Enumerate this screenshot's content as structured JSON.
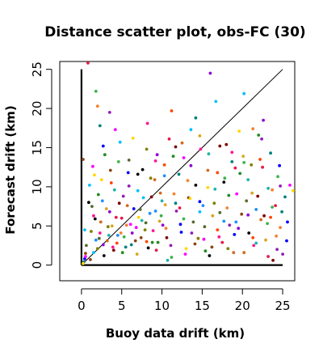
{
  "chart_data": {
    "type": "scatter",
    "title": "Distance scatter plot, obs-FC (30)",
    "xlabel": "Buoy data drift (km)",
    "ylabel": "Forecast drift (km)",
    "xlim": [
      -2.7,
      26.5
    ],
    "ylim": [
      -2,
      26
    ],
    "x_ticks": [
      0,
      5,
      10,
      15,
      20,
      25
    ],
    "y_ticks": [
      0,
      5,
      10,
      15,
      20,
      25
    ],
    "grid": false,
    "legend": "none",
    "reference_lines": [
      {
        "kind": "diagonal",
        "from": [
          0,
          0
        ],
        "to": [
          25,
          25
        ]
      },
      {
        "kind": "vertical",
        "from": [
          0,
          0
        ],
        "to": [
          0,
          25
        ]
      },
      {
        "kind": "horizontal",
        "from": [
          0,
          0
        ],
        "to": [
          25,
          0
        ]
      }
    ],
    "colors": [
      "#e6194b",
      "#3cb44b",
      "#f58231",
      "#911eb4",
      "#008080",
      "#0000ff",
      "#ff00ff",
      "#ffd700",
      "#8b4513",
      "#00bfff",
      "#556b2f",
      "#000000",
      "#808000",
      "#ff1493",
      "#1e90ff",
      "#228b22",
      "#d2691e",
      "#9400d3",
      "#daa520",
      "#20b2aa",
      "#ff4500",
      "#800000"
    ],
    "points": [
      [
        0.8,
        25.8
      ],
      [
        1.8,
        22.2
      ],
      [
        2,
        20.3
      ],
      [
        3.5,
        19.5
      ],
      [
        2.3,
        17.8
      ],
      [
        2.7,
        15.2
      ],
      [
        4.2,
        17.3
      ],
      [
        1.6,
        11.5
      ],
      [
        0.2,
        13.5
      ],
      [
        0.4,
        4.5
      ],
      [
        0.6,
        2.5
      ],
      [
        0.9,
        8
      ],
      [
        1.2,
        4.3
      ],
      [
        1.5,
        6.3
      ],
      [
        1.8,
        3.2
      ],
      [
        2.1,
        9
      ],
      [
        2.4,
        5.5
      ],
      [
        2.7,
        2.6
      ],
      [
        3.1,
        7.2
      ],
      [
        3.4,
        3.8
      ],
      [
        3.7,
        10.5
      ],
      [
        4,
        1.9
      ],
      [
        4.3,
        6.1
      ],
      [
        4.6,
        13.2
      ],
      [
        4.9,
        4.1
      ],
      [
        5.2,
        8.8
      ],
      [
        5.5,
        2.3
      ],
      [
        5.8,
        11.8
      ],
      [
        6.1,
        5.2
      ],
      [
        6.4,
        16.2
      ],
      [
        6.7,
        3.1
      ],
      [
        7,
        9.5
      ],
      [
        7.3,
        7.1
      ],
      [
        7.6,
        12.2
      ],
      [
        7.9,
        4.5
      ],
      [
        8.2,
        18.1
      ],
      [
        8.5,
        6.6
      ],
      [
        8.8,
        2.9
      ],
      [
        9.1,
        10.9
      ],
      [
        9.4,
        14.1
      ],
      [
        9.7,
        5.6
      ],
      [
        10,
        8.2
      ],
      [
        10.3,
        12.8
      ],
      [
        10.6,
        3.5
      ],
      [
        10.9,
        16.1
      ],
      [
        11.2,
        1
      ],
      [
        11.5,
        9.1
      ],
      [
        11.8,
        6.9
      ],
      [
        12.1,
        11.6
      ],
      [
        12.4,
        4.2
      ],
      [
        12.7,
        13.7
      ],
      [
        13,
        2.1
      ],
      [
        13.3,
        8.6
      ],
      [
        13.6,
        17.3
      ],
      [
        13.9,
        5.5
      ],
      [
        14.2,
        10.2
      ],
      [
        14.5,
        3.4
      ],
      [
        14.8,
        14.8
      ],
      [
        15.1,
        7.6
      ],
      [
        15.4,
        1.8
      ],
      [
        15.7,
        12.1
      ],
      [
        16,
        24.5
      ],
      [
        16.3,
        6.3
      ],
      [
        16.6,
        9.7
      ],
      [
        16.9,
        4.5
      ],
      [
        17.2,
        15.2
      ],
      [
        17.5,
        2.9
      ],
      [
        17.8,
        11.1
      ],
      [
        18.1,
        7.3
      ],
      [
        18.4,
        5.1
      ],
      [
        18.7,
        13.2
      ],
      [
        19,
        3.9
      ],
      [
        19.3,
        9.1
      ],
      [
        19.6,
        17.1
      ],
      [
        19.9,
        6.5
      ],
      [
        20.2,
        21.9
      ],
      [
        20.5,
        8.2
      ],
      [
        20.8,
        4.1
      ],
      [
        21.1,
        12.8
      ],
      [
        21.4,
        2.5
      ],
      [
        21.7,
        7.1
      ],
      [
        22,
        16.6
      ],
      [
        22.3,
        5.8
      ],
      [
        22.6,
        18.5
      ],
      [
        22.9,
        3.2
      ],
      [
        23.2,
        9.8
      ],
      [
        23.5,
        6.1
      ],
      [
        23.8,
        0.6
      ],
      [
        24.1,
        7.6
      ],
      [
        24.4,
        11.3
      ],
      [
        24.7,
        4.8
      ],
      [
        25,
        1.4
      ],
      [
        25.3,
        8.7
      ],
      [
        25.6,
        5.5
      ],
      [
        25.9,
        10.2
      ],
      [
        26.3,
        9.5
      ],
      [
        0.5,
        1.5
      ],
      [
        1,
        10.2
      ],
      [
        1.3,
        7.5
      ],
      [
        1.7,
        5.9
      ],
      [
        2,
        2.1
      ],
      [
        2.3,
        4.1
      ],
      [
        2.6,
        8.2
      ],
      [
        2.9,
        14.1
      ],
      [
        3.2,
        3.1
      ],
      [
        3.5,
        6.8
      ],
      [
        3.8,
        5
      ],
      [
        4.1,
        9.6
      ],
      [
        4.4,
        2.8
      ],
      [
        4.7,
        7.9
      ],
      [
        5,
        6
      ],
      [
        5.3,
        3.6
      ],
      [
        5.6,
        5.1
      ],
      [
        5.9,
        10.1
      ],
      [
        6.2,
        2.6
      ],
      [
        6.5,
        7.2
      ],
      [
        6.8,
        4.8
      ],
      [
        7.1,
        6.1
      ],
      [
        7.4,
        3.5
      ],
      [
        7.7,
        8.6
      ],
      [
        8,
        5.4
      ],
      [
        8.3,
        2.2
      ],
      [
        8.6,
        11.1
      ],
      [
        8.9,
        4.4
      ],
      [
        9.2,
        6.9
      ],
      [
        9.5,
        2.9
      ],
      [
        9.8,
        9.2
      ],
      [
        10.1,
        5.1
      ],
      [
        10.4,
        7.7
      ],
      [
        10.7,
        0.6
      ],
      [
        11.2,
        19.7
      ],
      [
        11.7,
        15.1
      ],
      [
        12.2,
        7.3
      ],
      [
        12.7,
        5.9
      ],
      [
        13.2,
        10.8
      ],
      [
        13.7,
        4.1
      ],
      [
        14.2,
        18.8
      ],
      [
        14.7,
        8.1
      ],
      [
        15.2,
        3.3
      ],
      [
        15.7,
        9.9
      ],
      [
        16.2,
        2.3
      ],
      [
        16.7,
        20.9
      ],
      [
        17.2,
        6.7
      ],
      [
        17.7,
        10.6
      ],
      [
        18.2,
        2.1
      ],
      [
        18.7,
        14.4
      ],
      [
        19.2,
        5.5
      ],
      [
        19.7,
        11.7
      ],
      [
        20.2,
        1.6
      ],
      [
        20.7,
        6.4
      ],
      [
        21.2,
        9.2
      ],
      [
        21.7,
        2.8
      ],
      [
        22.2,
        13.5
      ],
      [
        22.7,
        6.3
      ],
      [
        23.2,
        1.1
      ],
      [
        23.7,
        7.4
      ],
      [
        24.2,
        3.7
      ],
      [
        24.7,
        10.1
      ],
      [
        0.3,
        0.4
      ],
      [
        0.4,
        0.8
      ],
      [
        0.5,
        1.1
      ],
      [
        0.2,
        0.2
      ],
      [
        1.1,
        0.7
      ],
      [
        1.5,
        1.6
      ],
      [
        2.2,
        3.4
      ],
      [
        2.8,
        1.2
      ],
      [
        3.3,
        4.9
      ],
      [
        3.9,
        2.3
      ],
      [
        4.5,
        3.8
      ],
      [
        5.1,
        1.6
      ],
      [
        5.7,
        7.6
      ],
      [
        6.3,
        4.1
      ],
      [
        6.9,
        1.4
      ],
      [
        7.5,
        5.7
      ],
      [
        8.1,
        3
      ],
      [
        8.7,
        8.7
      ],
      [
        9.3,
        1.9
      ],
      [
        9.9,
        6.3
      ],
      [
        10.5,
        4.7
      ],
      [
        11.1,
        2.5
      ],
      [
        11.7,
        7.9
      ],
      [
        12.3,
        5.2
      ],
      [
        12.9,
        1.4
      ],
      [
        13.5,
        8.5
      ],
      [
        14.1,
        2.7
      ],
      [
        14.7,
        6.8
      ],
      [
        15.3,
        4.9
      ],
      [
        15.9,
        1.2
      ],
      [
        16.5,
        7.9
      ],
      [
        17.1,
        3.6
      ],
      [
        17.7,
        5.6
      ],
      [
        18.3,
        8.9
      ],
      [
        18.9,
        1.6
      ],
      [
        19.5,
        4.7
      ],
      [
        20.1,
        13.9
      ],
      [
        20.7,
        10.9
      ],
      [
        21.3,
        3.5
      ],
      [
        21.9,
        8.8
      ],
      [
        22.5,
        12.5
      ],
      [
        23.1,
        5.3
      ],
      [
        23.7,
        9.6
      ],
      [
        24.3,
        2
      ],
      [
        24.9,
        6.8
      ],
      [
        25.5,
        3.1
      ],
      [
        1.4,
        12.6
      ],
      [
        2.5,
        10.9
      ],
      [
        3.6,
        12.1
      ],
      [
        4.8,
        15.7
      ],
      [
        5.9,
        13.4
      ],
      [
        7,
        11.6
      ],
      [
        8.1,
        14.8
      ],
      [
        9.2,
        13.3
      ],
      [
        10.3,
        11.4
      ],
      [
        11.4,
        13.9
      ],
      [
        12.5,
        15.6
      ],
      [
        13.6,
        12.7
      ],
      [
        14.7,
        16.5
      ],
      [
        15.8,
        14.2
      ],
      [
        16.9,
        11.8
      ],
      [
        18,
        15.4
      ],
      [
        19.1,
        12.4
      ],
      [
        20.2,
        13.1
      ],
      [
        21.3,
        17.4
      ],
      [
        22.4,
        16.1
      ],
      [
        23.5,
        14.3
      ],
      [
        24.6,
        12.7
      ]
    ]
  }
}
